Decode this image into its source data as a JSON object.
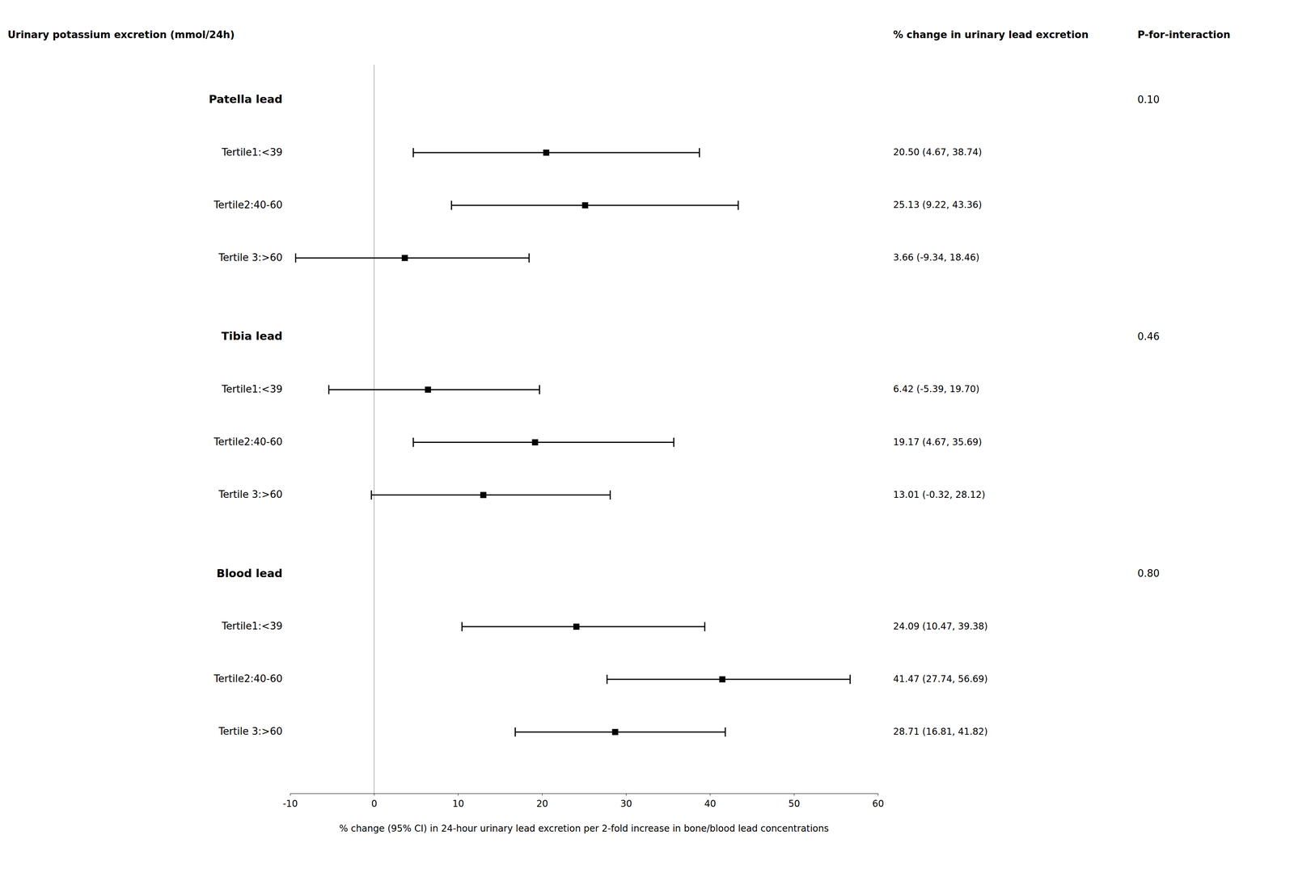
{
  "chart_data": {
    "type": "forest",
    "column_titles": [
      "Urinary potassium excretion (mmol/24h)",
      "% change in urinary lead excretion",
      "P-for-interaction"
    ],
    "x_label": "% change (95% CI) in 24-hour urinary lead excretion per 2-fold increase in bone/blood lead concentrations",
    "xlim": [
      -10,
      60
    ],
    "xticks": [
      -10,
      0,
      10,
      20,
      30,
      40,
      50,
      60
    ],
    "reference_x": 0,
    "color": "#000000",
    "marker": "square",
    "groups": [
      {
        "name": "Patella lead",
        "p_interaction": "0.10",
        "rows": [
          {
            "label": "Tertile1:<39",
            "estimate": 20.5,
            "ci_low": 4.67,
            "ci_high": 38.74,
            "ci_text": "20.50 (4.67, 38.74)"
          },
          {
            "label": "Tertile2:40-60",
            "estimate": 25.13,
            "ci_low": 9.22,
            "ci_high": 43.36,
            "ci_text": "25.13 (9.22, 43.36)"
          },
          {
            "label": "Tertile 3:>60",
            "estimate": 3.66,
            "ci_low": -9.34,
            "ci_high": 18.46,
            "ci_text": "3.66 (-9.34, 18.46)"
          }
        ]
      },
      {
        "name": "Tibia lead",
        "p_interaction": "0.46",
        "rows": [
          {
            "label": "Tertile1:<39",
            "estimate": 6.42,
            "ci_low": -5.39,
            "ci_high": 19.7,
            "ci_text": "6.42 (-5.39, 19.70)"
          },
          {
            "label": "Tertile2:40-60",
            "estimate": 19.17,
            "ci_low": 4.67,
            "ci_high": 35.69,
            "ci_text": "19.17 (4.67, 35.69)"
          },
          {
            "label": "Tertile 3:>60",
            "estimate": 13.01,
            "ci_low": -0.32,
            "ci_high": 28.12,
            "ci_text": "13.01 (-0.32, 28.12)"
          }
        ]
      },
      {
        "name": "Blood lead",
        "p_interaction": "0.80",
        "rows": [
          {
            "label": "Tertile1:<39",
            "estimate": 24.09,
            "ci_low": 10.47,
            "ci_high": 39.38,
            "ci_text": "24.09 (10.47, 39.38)"
          },
          {
            "label": "Tertile2:40-60",
            "estimate": 41.47,
            "ci_low": 27.74,
            "ci_high": 56.69,
            "ci_text": "41.47 (27.74, 56.69)"
          },
          {
            "label": "Tertile 3:>60",
            "estimate": 28.71,
            "ci_low": 16.81,
            "ci_high": 41.82,
            "ci_text": "28.71 (16.81, 41.82)"
          }
        ]
      }
    ]
  }
}
